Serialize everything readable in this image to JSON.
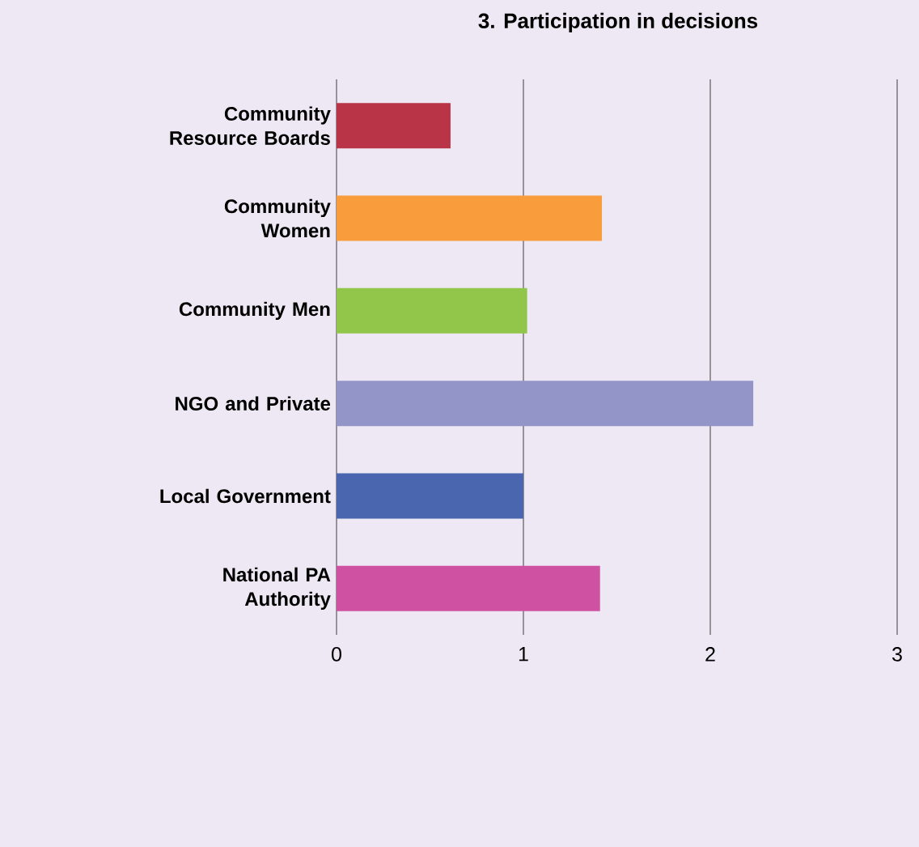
{
  "chart_data": {
    "type": "bar",
    "orientation": "horizontal",
    "title": "3.    Participation in decisions",
    "categories": [
      "Community Resource Boards",
      "Community Women",
      "Community Men",
      "NGO and Private",
      "Local Government",
      "National PA Authority"
    ],
    "values": [
      0.61,
      1.42,
      1.02,
      2.23,
      1.0,
      1.41
    ],
    "colors": [
      "#b83446",
      "#f99d3c",
      "#92c64a",
      "#9394c8",
      "#4966ae",
      "#cf52a2"
    ],
    "xlim": [
      0,
      3
    ],
    "xticks": [
      0,
      1,
      2,
      3
    ],
    "grid": "x"
  }
}
